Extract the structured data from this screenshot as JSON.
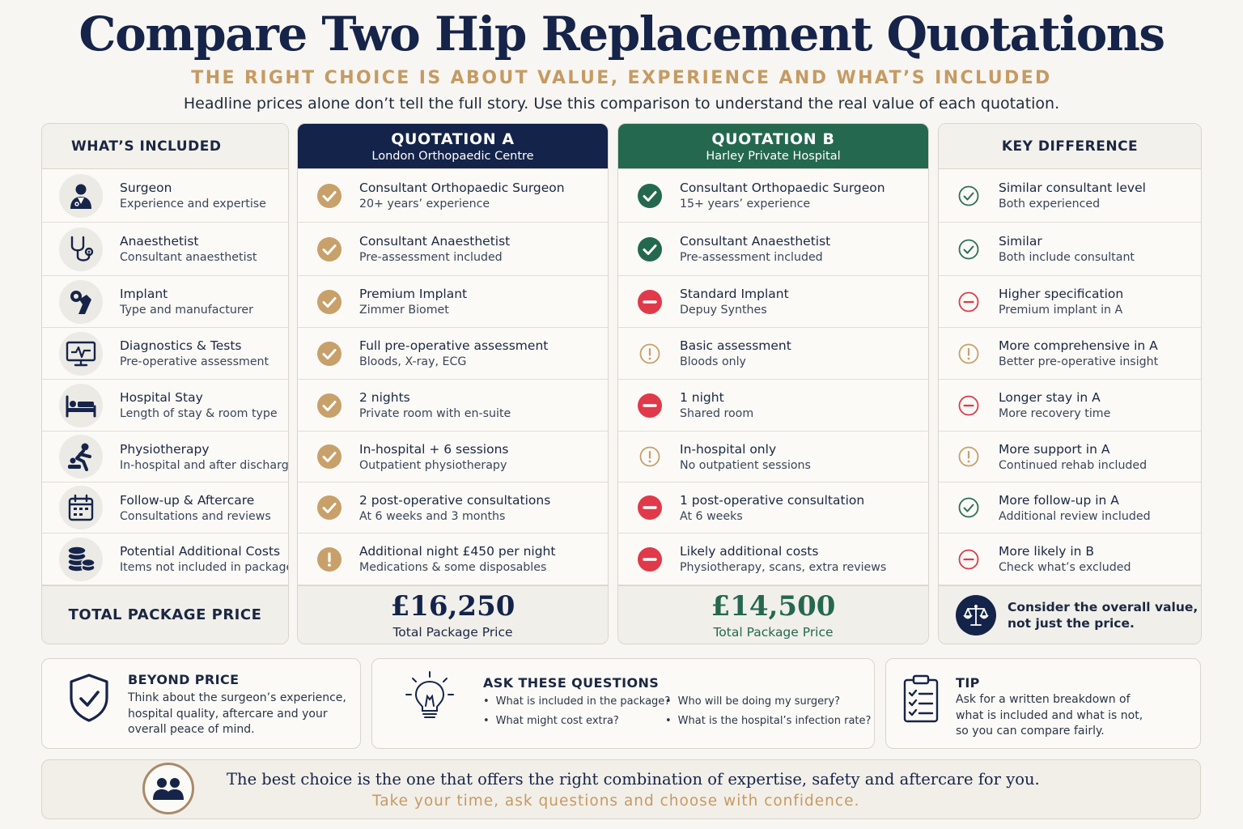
{
  "header": {
    "title": "Compare Two Hip Replacement Quotations",
    "subtitle": "THE RIGHT CHOICE IS ABOUT VALUE, EXPERIENCE AND WHAT’S INCLUDED",
    "intro": "Headline prices alone don’t tell the full story.  Use this comparison to understand the real value of each quotation."
  },
  "columns": {
    "included": {
      "title": "WHAT’S INCLUDED"
    },
    "a": {
      "title": "QUOTATION A",
      "subtitle": "London Orthopaedic Centre"
    },
    "b": {
      "title": "QUOTATION B",
      "subtitle": "Harley Private Hospital"
    },
    "key": {
      "title": "KEY DIFFERENCE"
    }
  },
  "rows": [
    {
      "included": {
        "title": "Surgeon",
        "desc": "Experience and expertise",
        "icon": "surgeon-icon"
      },
      "a": {
        "title": "Consultant Orthopaedic Surgeon",
        "desc": "20+ years’ experience",
        "status": "check"
      },
      "b": {
        "title": "Consultant Orthopaedic Surgeon",
        "desc": "15+ years’ experience",
        "status": "check"
      },
      "key": {
        "title": "Similar consultant level",
        "desc": "Both experienced",
        "status": "check"
      }
    },
    {
      "included": {
        "title": "Anaesthetist",
        "desc": "Consultant anaesthetist",
        "icon": "stethoscope-icon"
      },
      "a": {
        "title": "Consultant Anaesthetist",
        "desc": "Pre-assessment included",
        "status": "check"
      },
      "b": {
        "title": "Consultant Anaesthetist",
        "desc": "Pre-assessment included",
        "status": "check"
      },
      "key": {
        "title": "Similar",
        "desc": "Both include consultant",
        "status": "check"
      }
    },
    {
      "included": {
        "title": "Implant",
        "desc": "Type and manufacturer",
        "icon": "hip-implant-icon"
      },
      "a": {
        "title": "Premium Implant",
        "desc": "Zimmer Biomet",
        "status": "check"
      },
      "b": {
        "title": "Standard Implant",
        "desc": "Depuy Synthes",
        "status": "minus"
      },
      "key": {
        "title": "Higher specification",
        "desc": "Premium implant in A",
        "status": "minus"
      }
    },
    {
      "included": {
        "title": "Diagnostics & Tests",
        "desc": "Pre-operative assessment",
        "icon": "monitor-icon"
      },
      "a": {
        "title": "Full pre-operative assessment",
        "desc": "Bloods, X-ray, ECG",
        "status": "check"
      },
      "b": {
        "title": "Basic assessment",
        "desc": "Bloods only",
        "status": "alert"
      },
      "key": {
        "title": "More comprehensive in A",
        "desc": "Better pre-operative insight",
        "status": "alert"
      }
    },
    {
      "included": {
        "title": "Hospital Stay",
        "desc": "Length of stay & room type",
        "icon": "bed-icon"
      },
      "a": {
        "title": "2 nights",
        "desc": "Private room with en-suite",
        "status": "check"
      },
      "b": {
        "title": "1 night",
        "desc": "Shared room",
        "status": "minus"
      },
      "key": {
        "title": "Longer stay in A",
        "desc": "More recovery time",
        "status": "minus"
      }
    },
    {
      "included": {
        "title": "Physiotherapy",
        "desc": "In-hospital and after discharge",
        "icon": "physio-icon"
      },
      "a": {
        "title": "In-hospital + 6 sessions",
        "desc": "Outpatient physiotherapy",
        "status": "check"
      },
      "b": {
        "title": "In-hospital only",
        "desc": "No outpatient sessions",
        "status": "alert"
      },
      "key": {
        "title": "More support in A",
        "desc": "Continued rehab included",
        "status": "alert"
      }
    },
    {
      "included": {
        "title": "Follow-up & Aftercare",
        "desc": "Consultations and reviews",
        "icon": "calendar-icon"
      },
      "a": {
        "title": "2 post-operative consultations",
        "desc": "At 6 weeks and 3 months",
        "status": "check"
      },
      "b": {
        "title": "1 post-operative consultation",
        "desc": "At 6 weeks",
        "status": "minus"
      },
      "key": {
        "title": "More follow-up in A",
        "desc": "Additional review included",
        "status": "check"
      }
    },
    {
      "included": {
        "title": "Potential Additional Costs",
        "desc": "Items not included in package",
        "icon": "coins-icon"
      },
      "a": {
        "title": "Additional night £450 per night",
        "desc": "Medications & some disposables",
        "status": "alert"
      },
      "b": {
        "title": "Likely additional costs",
        "desc": "Physiotherapy, scans, extra reviews",
        "status": "minus"
      },
      "key": {
        "title": "More likely in B",
        "desc": "Check what’s excluded",
        "status": "minus"
      }
    }
  ],
  "totals": {
    "label": "TOTAL PACKAGE PRICE",
    "a": {
      "price": "£16,250",
      "label": "Total Package Price"
    },
    "b": {
      "price": "£14,500",
      "label": "Total Package Price"
    },
    "key": {
      "line1": "Consider the overall value,",
      "line2": "not just the price."
    }
  },
  "cards": {
    "beyond": {
      "title": "BEYOND PRICE",
      "lines": [
        "Think about the surgeon’s experience,",
        "hospital quality, aftercare and your",
        "overall peace of mind."
      ]
    },
    "ask": {
      "title": "ASK THESE QUESTIONS",
      "questions": [
        "What is included in the package?",
        "What might cost extra?",
        "Who will be doing my surgery?",
        "What is the hospital’s infection rate?"
      ]
    },
    "tip": {
      "title": "TIP",
      "lines": [
        "Ask for a written breakdown of",
        "what is included and what is not,",
        "so you can compare fairly."
      ]
    }
  },
  "banner": {
    "line1": "The best choice is the one that offers the right combination of expertise, safety and aftercare for you.",
    "line2": "Take your time, ask questions and choose with confidence."
  },
  "colors": {
    "navy": "#13234a",
    "green": "#24684f",
    "gold": "#c8a06a",
    "red": "#e0394a",
    "tan": "#c59a63",
    "check_outline": "#2e6f57"
  }
}
